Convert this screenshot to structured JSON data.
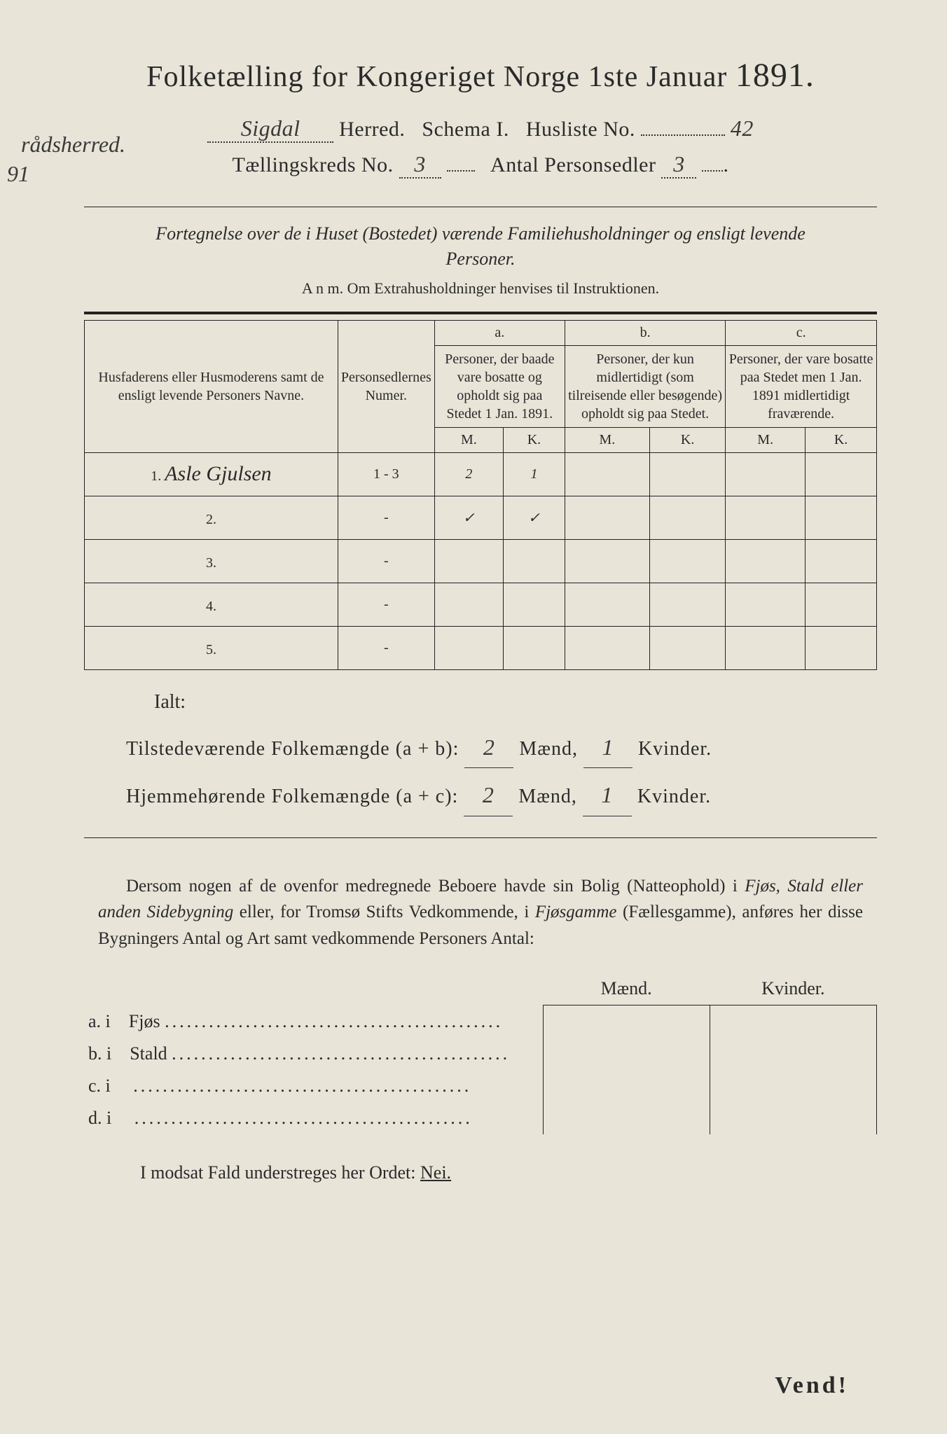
{
  "colors": {
    "page_bg": "#e8e4d8",
    "text": "#2a2a2a",
    "ink_handwritten": "#3a3a3a",
    "border": "#222222",
    "outer_bg": "#1a1a1a"
  },
  "typography": {
    "title_fontsize": 42,
    "title_big_fontsize": 48,
    "header_fontsize": 30,
    "subtitle_fontsize": 26,
    "table_header_fontsize": 18,
    "table_cell_fontsize": 20,
    "totals_fontsize": 28,
    "para_fontsize": 25,
    "vend_fontsize": 34
  },
  "title": {
    "pre": "Folketælling for Kongeriget Norge 1ste Januar",
    "year": "1891."
  },
  "header": {
    "herred_prefix_handwritten": "rådsherred.",
    "herred_value": "Sigdal",
    "herred_label": "Herred.",
    "schema_label": "Schema I.",
    "husliste_label": "Husliste No.",
    "husliste_value": "42",
    "kreds_label": "Tællingskreds No.",
    "kreds_value": "3",
    "personsedler_label": "Antal Personsedler",
    "personsedler_value": "3",
    "margin_year": "91"
  },
  "subtitle": "Fortegnelse over de i Huset (Bostedet) værende Familiehusholdninger og ensligt levende Personer.",
  "anm": "A n m.  Om Extrahusholdninger henvises til Instruktionen.",
  "table": {
    "col_name": "Husfaderens eller Husmoderens samt de ensligt levende Personers Navne.",
    "col_num": "Personsedlernes Numer.",
    "col_a_head": "a.",
    "col_a_text": "Personer, der baade vare bosatte og opholdt sig paa Stedet 1 Jan. 1891.",
    "col_b_head": "b.",
    "col_b_text": "Personer, der kun midlertidigt (som tilreisende eller besøgende) opholdt sig paa Stedet.",
    "col_c_head": "c.",
    "col_c_text": "Personer, der vare bosatte paa Stedet men 1 Jan. 1891 midlertidigt fraværende.",
    "mk_m": "M.",
    "mk_k": "K.",
    "rows": [
      {
        "n": "1.",
        "name": "Asle Gjulsen",
        "num": "1 - 3",
        "a_m": "2",
        "a_k": "1",
        "b_m": "",
        "b_k": "",
        "c_m": "",
        "c_k": ""
      },
      {
        "n": "2.",
        "name": "",
        "num": "-",
        "a_m": "✓",
        "a_k": "✓",
        "b_m": "",
        "b_k": "",
        "c_m": "",
        "c_k": ""
      },
      {
        "n": "3.",
        "name": "",
        "num": "-",
        "a_m": "",
        "a_k": "",
        "b_m": "",
        "b_k": "",
        "c_m": "",
        "c_k": ""
      },
      {
        "n": "4.",
        "name": "",
        "num": "-",
        "a_m": "",
        "a_k": "",
        "b_m": "",
        "b_k": "",
        "c_m": "",
        "c_k": ""
      },
      {
        "n": "5.",
        "name": "",
        "num": "-",
        "a_m": "",
        "a_k": "",
        "b_m": "",
        "b_k": "",
        "c_m": "",
        "c_k": ""
      }
    ]
  },
  "ialt": "Ialt:",
  "totals": {
    "line1_label": "Tilstedeværende Folkemængde (a + b):",
    "line1_m": "2",
    "line1_k": "1",
    "line2_label": "Hjemmehørende Folkemængde (a + c):",
    "line2_m": "2",
    "line2_k": "1",
    "maend": "Mænd,",
    "kvinder": "Kvinder."
  },
  "paragraph": {
    "t1": "Dersom nogen af de ovenfor medregnede Beboere havde sin Bolig (Natteophold) i ",
    "t2": "Fjøs, Stald eller anden Sidebygning",
    "t3": " eller, for Tromsø Stifts Vedkommende, i ",
    "t4": "Fjøsgamme",
    "t5": " (Fællesgamme), anføres her disse Bygningers ",
    "t6": "Antal",
    "t7": " og ",
    "t8": "Art",
    "t9": " samt vedkommende Personers Antal:"
  },
  "bldg": {
    "head_m": "Mænd.",
    "head_k": "Kvinder.",
    "rows": [
      {
        "label": "a.  i",
        "name": "Fjøs"
      },
      {
        "label": "b.  i",
        "name": "Stald"
      },
      {
        "label": "c.  i",
        "name": ""
      },
      {
        "label": "d.  i",
        "name": ""
      }
    ]
  },
  "neiline": {
    "pre": "I modsat Fald understreges her Ordet: ",
    "nei": "Nei."
  },
  "vend": "Vend!"
}
